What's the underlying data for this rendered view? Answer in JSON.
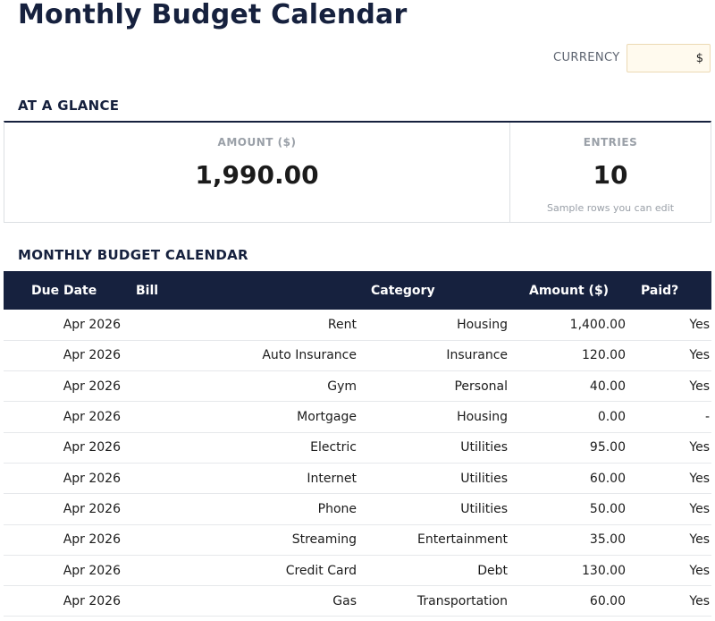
{
  "header": {
    "title": "Monthly Budget Calendar"
  },
  "currency": {
    "label": "CURRENCY",
    "value": "$"
  },
  "glance": {
    "heading": "AT A GLANCE",
    "amount": {
      "label": "AMOUNT ($)",
      "value": "1,990.00"
    },
    "entries": {
      "label": "ENTRIES",
      "value": "10",
      "note": "Sample rows you can edit"
    }
  },
  "calendar": {
    "heading": "MONTHLY BUDGET CALENDAR",
    "columns": {
      "due_date": "Due Date",
      "bill": "Bill",
      "category": "Category",
      "amount": "Amount ($)",
      "paid": "Paid?"
    },
    "rows": [
      {
        "due_date": "Apr 2026",
        "bill": "Rent",
        "category": "Housing",
        "amount": "1,400.00",
        "paid": "Yes"
      },
      {
        "due_date": "Apr 2026",
        "bill": "Auto Insurance",
        "category": "Insurance",
        "amount": "120.00",
        "paid": "Yes"
      },
      {
        "due_date": "Apr 2026",
        "bill": "Gym",
        "category": "Personal",
        "amount": "40.00",
        "paid": "Yes"
      },
      {
        "due_date": "Apr 2026",
        "bill": "Mortgage",
        "category": "Housing",
        "amount": "0.00",
        "paid": "-"
      },
      {
        "due_date": "Apr 2026",
        "bill": "Electric",
        "category": "Utilities",
        "amount": "95.00",
        "paid": "Yes"
      },
      {
        "due_date": "Apr 2026",
        "bill": "Internet",
        "category": "Utilities",
        "amount": "60.00",
        "paid": "Yes"
      },
      {
        "due_date": "Apr 2026",
        "bill": "Phone",
        "category": "Utilities",
        "amount": "50.00",
        "paid": "Yes"
      },
      {
        "due_date": "Apr 2026",
        "bill": "Streaming",
        "category": "Entertainment",
        "amount": "35.00",
        "paid": "Yes"
      },
      {
        "due_date": "Apr 2026",
        "bill": "Credit Card",
        "category": "Debt",
        "amount": "130.00",
        "paid": "Yes"
      },
      {
        "due_date": "Apr 2026",
        "bill": "Gas",
        "category": "Transportation",
        "amount": "60.00",
        "paid": "Yes"
      }
    ]
  },
  "colors": {
    "navy": "#16213e",
    "currency_bg": "#fffaee",
    "muted_text": "#9aa0a8",
    "border": "#dcdfe3"
  }
}
